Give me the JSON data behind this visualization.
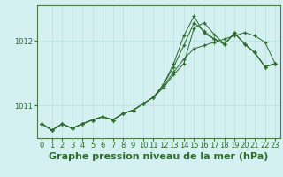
{
  "title": "Graphe pression niveau de la mer (hPa)",
  "background_color": "#d4f0f0",
  "grid_color": "#b8dede",
  "line_color": "#2d6a2d",
  "yticks": [
    1011,
    1012
  ],
  "ylim": [
    1010.5,
    1012.55
  ],
  "xlim": [
    -0.5,
    23.5
  ],
  "xticks": [
    0,
    1,
    2,
    3,
    4,
    5,
    6,
    7,
    8,
    9,
    10,
    11,
    12,
    13,
    14,
    15,
    16,
    17,
    18,
    19,
    20,
    21,
    22,
    23
  ],
  "series": [
    [
      1010.72,
      1010.62,
      1010.72,
      1010.65,
      1010.72,
      1010.78,
      1010.83,
      1010.78,
      1010.88,
      1010.93,
      1011.03,
      1011.13,
      1011.3,
      1011.52,
      1011.72,
      1011.88,
      1011.93,
      1011.98,
      1012.03,
      1012.08,
      1012.13,
      1012.08,
      1011.98,
      1011.65
    ],
    [
      1010.72,
      1010.62,
      1010.72,
      1010.65,
      1010.72,
      1010.78,
      1010.83,
      1010.78,
      1010.88,
      1010.93,
      1011.03,
      1011.13,
      1011.28,
      1011.48,
      1011.65,
      1012.2,
      1012.28,
      1012.1,
      1011.95,
      1012.12,
      1011.95,
      1011.82,
      1011.6,
      1011.65
    ],
    [
      1010.72,
      1010.62,
      1010.72,
      1010.65,
      1010.72,
      1010.78,
      1010.83,
      1010.78,
      1010.88,
      1010.93,
      1011.03,
      1011.13,
      1011.33,
      1011.6,
      1011.93,
      1012.28,
      1012.15,
      1012.03,
      1011.95,
      1012.12,
      1011.95,
      1011.82,
      1011.6,
      1011.65
    ],
    [
      1010.72,
      1010.62,
      1010.72,
      1010.65,
      1010.72,
      1010.78,
      1010.83,
      1010.78,
      1010.88,
      1010.93,
      1011.03,
      1011.13,
      1011.33,
      1011.65,
      1012.08,
      1012.38,
      1012.12,
      1012.03,
      1011.95,
      1012.12,
      1011.95,
      1011.82,
      1011.6,
      1011.65
    ]
  ],
  "tick_fontsize": 6,
  "title_fontsize": 8
}
